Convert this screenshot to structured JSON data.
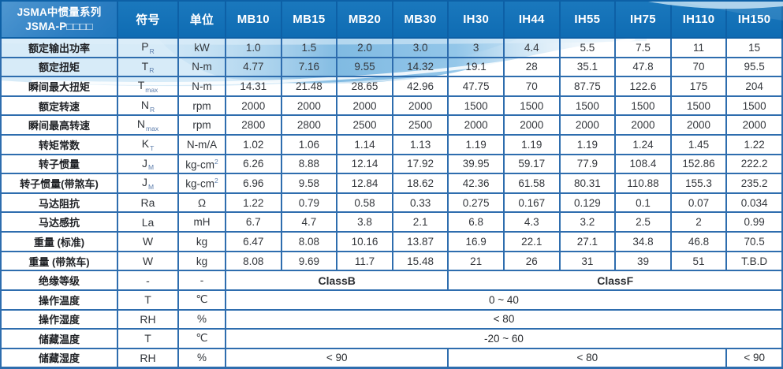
{
  "header": {
    "title_line1": "JSMA中惯量系列",
    "title_line2": "JSMA-P□□□□",
    "col_symbol": "符号",
    "col_unit": "单位",
    "models": [
      "MB10",
      "MB15",
      "MB20",
      "MB30",
      "IH30",
      "IH44",
      "IH55",
      "IH75",
      "IH110",
      "IH150"
    ]
  },
  "rows": [
    {
      "label": "额定输出功率",
      "sym": "P",
      "sub": "R",
      "unit": "kW",
      "values": [
        "1.0",
        "1.5",
        "2.0",
        "3.0",
        "3",
        "4.4",
        "5.5",
        "7.5",
        "11",
        "15"
      ]
    },
    {
      "label": "额定扭矩",
      "sym": "T",
      "sub": "R",
      "unit": "N-m",
      "values": [
        "4.77",
        "7.16",
        "9.55",
        "14.32",
        "19.1",
        "28",
        "35.1",
        "47.8",
        "70",
        "95.5"
      ]
    },
    {
      "label": "瞬间最大扭矩",
      "sym": "T",
      "sub": "max",
      "unit": "N-m",
      "values": [
        "14.31",
        "21.48",
        "28.65",
        "42.96",
        "47.75",
        "70",
        "87.75",
        "122.6",
        "175",
        "204"
      ]
    },
    {
      "label": "额定转速",
      "sym": "N",
      "sub": "R",
      "unit": "rpm",
      "values": [
        "2000",
        "2000",
        "2000",
        "2000",
        "1500",
        "1500",
        "1500",
        "1500",
        "1500",
        "1500"
      ]
    },
    {
      "label": "瞬间最高转速",
      "sym": "N",
      "sub": "max",
      "unit": "rpm",
      "values": [
        "2800",
        "2800",
        "2500",
        "2500",
        "2000",
        "2000",
        "2000",
        "2000",
        "2000",
        "2000"
      ]
    },
    {
      "label": "转矩常数",
      "sym": "K",
      "sub": "T",
      "unit": "N-m/A",
      "values": [
        "1.02",
        "1.06",
        "1.14",
        "1.13",
        "1.19",
        "1.19",
        "1.19",
        "1.24",
        "1.45",
        "1.22"
      ]
    },
    {
      "label": "转子惯量",
      "sym": "J",
      "sub": "M",
      "unit": "kg-cm",
      "sup": "2",
      "values": [
        "6.26",
        "8.88",
        "12.14",
        "17.92",
        "39.95",
        "59.17",
        "77.9",
        "108.4",
        "152.86",
        "222.2"
      ]
    },
    {
      "label": "转子惯量(带煞车)",
      "sym": "J",
      "sub": "M",
      "unit": "kg-cm",
      "sup": "2",
      "values": [
        "6.96",
        "9.58",
        "12.84",
        "18.62",
        "42.36",
        "61.58",
        "80.31",
        "110.88",
        "155.3",
        "235.2"
      ]
    },
    {
      "label": "马达阻抗",
      "sym": "Ra",
      "unit": "Ω",
      "values": [
        "1.22",
        "0.79",
        "0.58",
        "0.33",
        "0.275",
        "0.167",
        "0.129",
        "0.1",
        "0.07",
        "0.034"
      ]
    },
    {
      "label": "马达感抗",
      "sym": "La",
      "unit": "mH",
      "values": [
        "6.7",
        "4.7",
        "3.8",
        "2.1",
        "6.8",
        "4.3",
        "3.2",
        "2.5",
        "2",
        "0.99"
      ]
    },
    {
      "label": "重量 (标准)",
      "sym": "W",
      "unit": "kg",
      "values": [
        "6.47",
        "8.08",
        "10.16",
        "13.87",
        "16.9",
        "22.1",
        "27.1",
        "34.8",
        "46.8",
        "70.5"
      ]
    },
    {
      "label": "重量 (带煞车)",
      "sym": "W",
      "unit": "kg",
      "values": [
        "8.08",
        "9.69",
        "11.7",
        "15.48",
        "21",
        "26",
        "31",
        "39",
        "51",
        "T.B.D"
      ]
    }
  ],
  "spanned_rows": [
    {
      "label": "绝缘等级",
      "sym": "-",
      "unit": "-",
      "class_row": true,
      "cells": [
        {
          "text": "ClassB",
          "span": 4
        },
        {
          "text": "ClassF",
          "span": 6
        }
      ]
    },
    {
      "label": "操作温度",
      "sym": "T",
      "unit": "℃",
      "cells": [
        {
          "text": "0 ~ 40",
          "span": 10
        }
      ]
    },
    {
      "label": "操作湿度",
      "sym": "RH",
      "unit": "%",
      "cells": [
        {
          "text": "< 80",
          "span": 10
        }
      ]
    },
    {
      "label": "储藏温度",
      "sym": "T",
      "unit": "℃",
      "cells": [
        {
          "text": "-20 ~ 60",
          "span": 10
        }
      ]
    },
    {
      "label": "储藏湿度",
      "sym": "RH",
      "unit": "%",
      "cells": [
        {
          "text": "< 90",
          "span": 4
        },
        {
          "text": "< 80",
          "span": 5
        },
        {
          "text": "< 90",
          "span": 1
        }
      ]
    }
  ],
  "colors": {
    "header_bg": "#1270b8",
    "title_cell_bg": "#3a8ac8",
    "border": "#2e6dae",
    "header_separator": "#0d60a6",
    "wave_deep": "#7cb8e1",
    "wave_light": "#cde6f6",
    "header_text": "#ffffff",
    "label_text": "#1f2125",
    "value_text": "#34373c",
    "subscript_text": "#5b7cab"
  }
}
